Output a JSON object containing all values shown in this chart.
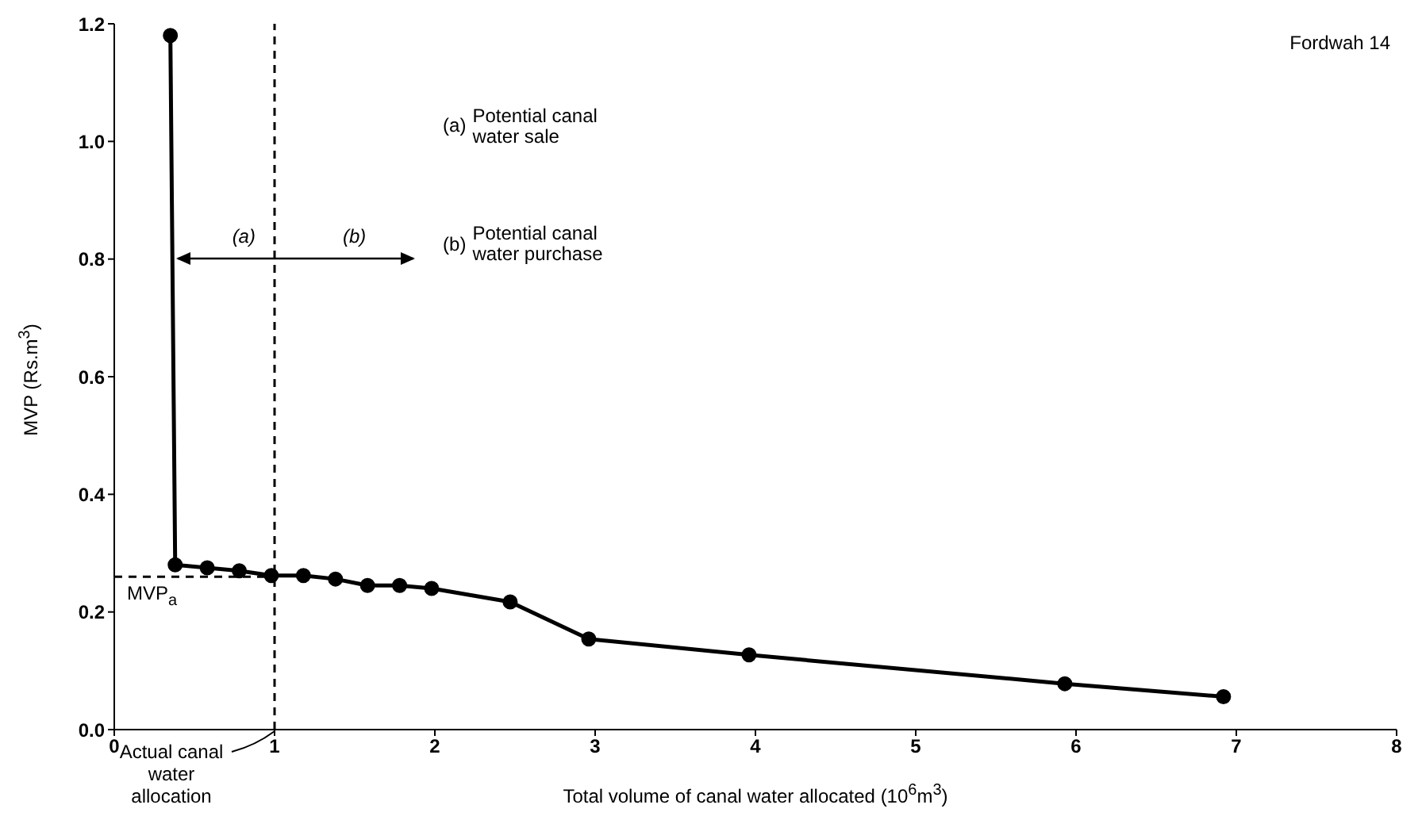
{
  "chart_data": {
    "type": "line",
    "xlabel": "Total volume of canal water allocated (10$^{6}$m$^{3}$)",
    "ylabel": "MVP (Rs.m$^{3}$)",
    "x": [
      0.35,
      0.38,
      0.58,
      0.78,
      0.98,
      1.18,
      1.38,
      1.58,
      1.78,
      1.98,
      2.47,
      2.96,
      3.96,
      5.93,
      6.92
    ],
    "series": [
      {
        "color": "#000000",
        "values": [
          1.18,
          0.28,
          0.275,
          0.27,
          0.262,
          0.262,
          0.256,
          0.245,
          0.245,
          0.24,
          0.217,
          0.154,
          0.127,
          0.078,
          0.056
        ]
      }
    ],
    "xlim": [
      0,
      8
    ],
    "xticks": [
      0,
      1,
      2,
      3,
      4,
      5,
      6,
      7,
      8
    ],
    "ylim": [
      0,
      1.2
    ],
    "yticks": [
      {
        "value": 0,
        "label": "0.0"
      },
      0.2,
      0.4,
      0.6,
      0.8,
      {
        "value": 1,
        "label": "1.0"
      },
      1.2
    ],
    "ref_lines": [
      {
        "axis": "x",
        "value": 1,
        "line_style": "dashed"
      },
      {
        "axis": "y",
        "value": 0.26,
        "label": "MVP$_{a}$",
        "line_style": "dashed"
      }
    ],
    "annotations": [
      "Fordwah 14",
      "(a) Potential canal water sale",
      "(b) Potential canal water purchase",
      "(a)",
      "(b)",
      "Actual canal water allocation"
    ],
    "marker": "circle",
    "line_style": "solid",
    "legend": false
  }
}
